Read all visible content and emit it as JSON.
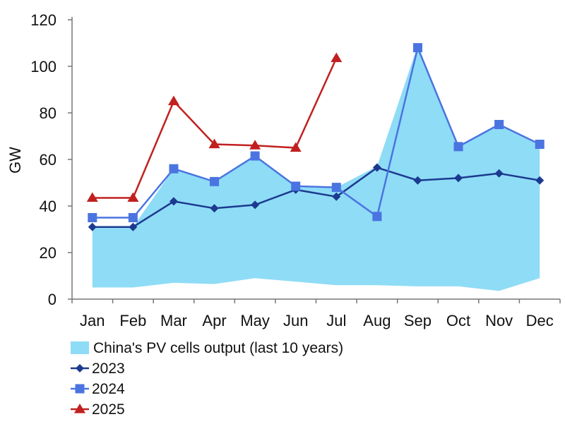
{
  "chart_data": {
    "type": "line",
    "title": "",
    "xlabel": "",
    "ylabel": "GW",
    "ylim": [
      0,
      120
    ],
    "yticks": [
      0,
      20,
      40,
      60,
      80,
      100,
      120
    ],
    "categories": [
      "Jan",
      "Feb",
      "Mar",
      "Apr",
      "May",
      "Jun",
      "Jul",
      "Aug",
      "Sep",
      "Oct",
      "Nov",
      "Dec"
    ],
    "grid": false,
    "legend_position": "bottom",
    "range_band": {
      "name": "China's PV cells output (last 10 years)",
      "color": "#8fdcf6",
      "low": [
        5,
        5,
        7,
        6.5,
        9,
        7.5,
        6,
        6,
        5.5,
        5.5,
        3.5,
        9
      ],
      "high": [
        31,
        31,
        56,
        50,
        62,
        48,
        48,
        57,
        109,
        66,
        75,
        66
      ]
    },
    "series": [
      {
        "name": "2023",
        "color": "#1c3a8f",
        "marker": "diamond",
        "values": [
          31,
          31,
          42,
          39,
          40.5,
          47,
          44,
          56.5,
          51,
          52,
          54,
          51
        ]
      },
      {
        "name": "2024",
        "color": "#4a74e0",
        "marker": "square",
        "values": [
          35,
          35,
          56,
          50.5,
          61.5,
          48.5,
          48,
          35.5,
          108,
          65.5,
          75,
          66.5
        ]
      },
      {
        "name": "2025",
        "color": "#c0201f",
        "marker": "triangle",
        "values": [
          43.5,
          43.5,
          85,
          66.5,
          66,
          65,
          103.5,
          null,
          null,
          null,
          null,
          null
        ]
      }
    ]
  }
}
